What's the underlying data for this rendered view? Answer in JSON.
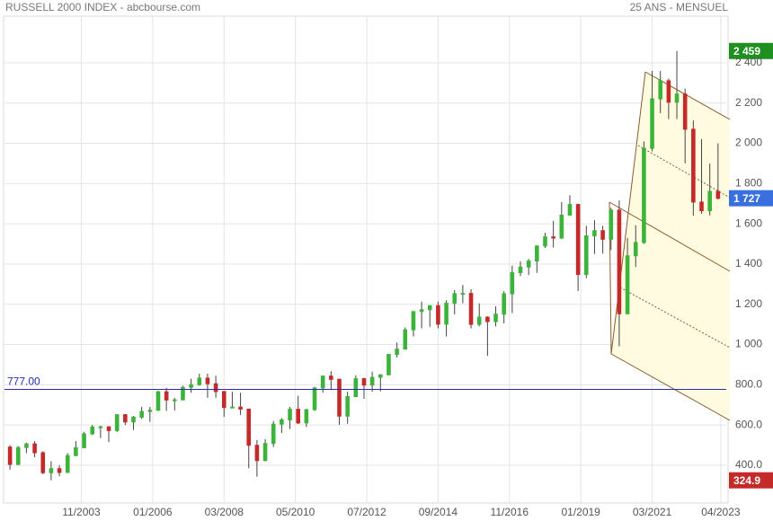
{
  "chart_data": {
    "type": "candlestick",
    "title": "RUSSELL 2000 INDEX - abcbourse.com",
    "subtitle": "25 ANS - MENSUEL",
    "up_color": "#3cb43c",
    "down_color": "#c42a2a",
    "grid": true,
    "xlim": [
      "07/2001",
      "06/2023"
    ],
    "xticks": [
      "11/2003",
      "01/2006",
      "03/2008",
      "05/2010",
      "07/2012",
      "09/2014",
      "11/2016",
      "01/2019",
      "03/2021",
      "04/2023"
    ],
    "ylim": [
      212,
      2632
    ],
    "yticks": [
      {
        "value": 400,
        "label": "400.0"
      },
      {
        "value": 600,
        "label": "600.0"
      },
      {
        "value": 800,
        "label": "800.0"
      },
      {
        "value": 1000,
        "label": "1 000"
      },
      {
        "value": 1200,
        "label": "1 200"
      },
      {
        "value": 1400,
        "label": "1 400"
      },
      {
        "value": 1600,
        "label": "1 600"
      },
      {
        "value": 1800,
        "label": "1 800"
      },
      {
        "value": 2000,
        "label": "2 000"
      },
      {
        "value": 2200,
        "label": "2 200"
      },
      {
        "value": 2400,
        "label": "2 400"
      }
    ],
    "reference_line": {
      "value": 777,
      "label": "777.00",
      "color": "#2a2ab4"
    },
    "badges": [
      {
        "value": 2459,
        "label": "2 459",
        "color": "#1f8f1f"
      },
      {
        "value": 1727,
        "label": "1 727",
        "color": "#3a6fe0"
      },
      {
        "value": 324.9,
        "color": "#c42a2a"
      }
    ],
    "x": [
      "09/2001",
      "12/2001",
      "03/2002",
      "06/2002",
      "09/2002",
      "12/2002",
      "03/2003",
      "06/2003",
      "09/2003",
      "12/2003",
      "03/2004",
      "06/2004",
      "09/2004",
      "12/2004",
      "03/2005",
      "06/2005",
      "09/2005",
      "12/2005",
      "03/2006",
      "06/2006",
      "09/2006",
      "12/2006",
      "03/2007",
      "06/2007",
      "09/2007",
      "12/2007",
      "03/2008",
      "06/2008",
      "09/2008",
      "12/2008",
      "03/2009",
      "06/2009",
      "09/2009",
      "12/2009",
      "03/2010",
      "06/2010",
      "09/2010",
      "12/2010",
      "03/2011",
      "06/2011",
      "09/2011",
      "12/2011",
      "03/2012",
      "06/2012",
      "09/2012",
      "12/2012",
      "03/2013",
      "06/2013",
      "09/2013",
      "12/2013",
      "03/2014",
      "06/2014",
      "09/2014",
      "12/2014",
      "03/2015",
      "06/2015",
      "09/2015",
      "12/2015",
      "03/2016",
      "06/2016",
      "09/2016",
      "12/2016",
      "03/2017",
      "06/2017",
      "09/2017",
      "12/2017",
      "03/2018",
      "06/2018",
      "09/2018",
      "12/2018",
      "03/2019",
      "06/2019",
      "09/2019",
      "12/2019",
      "03/2020",
      "06/2020",
      "09/2020",
      "12/2020",
      "03/2021",
      "06/2021",
      "09/2021",
      "12/2021",
      "03/2022",
      "06/2022",
      "09/2022",
      "12/2022",
      "03/2023"
    ],
    "open": [
      490,
      404,
      488,
      506,
      462,
      363,
      383,
      364,
      448,
      487,
      556,
      590,
      591,
      572,
      651,
      615,
      639,
      667,
      673,
      765,
      724,
      725,
      787,
      800,
      833,
      805,
      766,
      687,
      689,
      679,
      499,
      423,
      508,
      604,
      625,
      678,
      610,
      676,
      784,
      843,
      827,
      644,
      741,
      830,
      798,
      837,
      849,
      951,
      977,
      1073,
      1164,
      1173,
      1193,
      1101,
      1205,
      1253,
      1254,
      1100,
      1136,
      1114,
      1151,
      1252,
      1357,
      1385,
      1415,
      1490,
      1535,
      1529,
      1643,
      1696,
      1348,
      1540,
      1566,
      1523,
      1668,
      1153,
      1441,
      1507,
      1975,
      2221,
      2311,
      2204,
      2245,
      2070,
      1708,
      1665,
      1761
    ],
    "high": [
      500,
      495,
      512,
      520,
      470,
      420,
      400,
      460,
      520,
      566,
      601,
      596,
      592,
      655,
      655,
      645,
      690,
      690,
      770,
      785,
      735,
      795,
      830,
      855,
      855,
      845,
      770,
      765,
      760,
      680,
      525,
      530,
      620,
      635,
      690,
      745,
      680,
      790,
      845,
      868,
      830,
      765,
      846,
      835,
      865,
      853,
      953,
      1010,
      1085,
      1165,
      1213,
      1193,
      1213,
      1220,
      1270,
      1296,
      1275,
      1205,
      1140,
      1190,
      1265,
      1392,
      1414,
      1425,
      1492,
      1555,
      1615,
      1708,
      1742,
      1700,
      1590,
      1618,
      1590,
      1680,
      1716,
      1530,
      1593,
      2010,
      2360,
      2360,
      2322,
      2459,
      2272,
      2114,
      2021,
      1900,
      2000
    ],
    "low": [
      378,
      400,
      460,
      440,
      355,
      324.9,
      345,
      362,
      445,
      485,
      550,
      535,
      515,
      565,
      600,
      575,
      630,
      615,
      670,
      670,
      672,
      722,
      760,
      795,
      735,
      735,
      640,
      685,
      650,
      385,
      343,
      420,
      490,
      560,
      580,
      605,
      590,
      670,
      760,
      775,
      601,
      606,
      738,
      730,
      765,
      767,
      848,
      935,
      975,
      1040,
      1080,
      1088,
      1080,
      1040,
      1150,
      1205,
      1080,
      1090,
      943,
      1090,
      1105,
      1156,
      1340,
      1345,
      1356,
      1480,
      1482,
      1525,
      1640,
      1266,
      1330,
      1450,
      1452,
      1470,
      991,
      1150,
      1385,
      1500,
      1960,
      2150,
      2120,
      2120,
      1900,
      1641,
      1650,
      1642,
      1720
    ],
    "close": [
      404,
      488,
      506,
      462,
      363,
      383,
      364,
      448,
      487,
      556,
      590,
      591,
      572,
      651,
      615,
      639,
      667,
      673,
      765,
      724,
      725,
      787,
      800,
      833,
      805,
      766,
      687,
      689,
      679,
      499,
      423,
      508,
      604,
      625,
      678,
      610,
      676,
      784,
      843,
      827,
      644,
      741,
      830,
      798,
      837,
      849,
      951,
      977,
      1073,
      1164,
      1173,
      1193,
      1101,
      1205,
      1253,
      1254,
      1100,
      1136,
      1114,
      1151,
      1252,
      1357,
      1385,
      1415,
      1490,
      1535,
      1529,
      1643,
      1696,
      1348,
      1540,
      1566,
      1523,
      1668,
      1153,
      1441,
      1507,
      1975,
      2221,
      2311,
      2204,
      2245,
      2070,
      1708,
      1665,
      1761,
      1727
    ]
  }
}
